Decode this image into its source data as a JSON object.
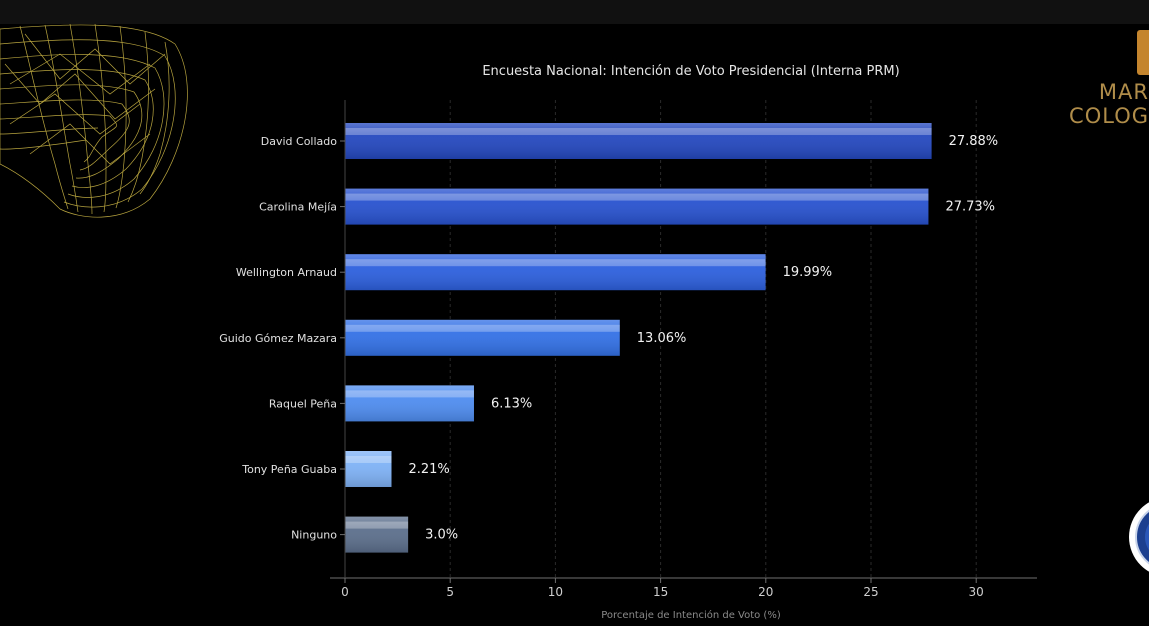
{
  "chart_data": {
    "type": "bar",
    "orientation": "horizontal",
    "title": "Encuesta Nacional: Intención de Voto Presidencial (Interna PRM)",
    "xlabel": "Porcentaje de Intención de Voto (%)",
    "ylabel": "",
    "xlim": [
      0,
      33
    ],
    "xticks": [
      0,
      5,
      10,
      15,
      20,
      25,
      30
    ],
    "grid": true,
    "legend": "none",
    "categories": [
      "David Collado",
      "Carolina Mejía",
      "Wellington Arnaud",
      "Guido Gómez Mazara",
      "Raquel Peña",
      "Tony Peña Guaba",
      "Ninguno"
    ],
    "values": [
      27.88,
      27.73,
      19.99,
      13.06,
      6.13,
      2.21,
      3.0
    ],
    "data_labels": [
      "27.88%",
      "27.73%",
      "19.99%",
      "13.06%",
      "6.13%",
      "2.21%",
      "3.0%"
    ],
    "bar_colors": [
      "#2448bf",
      "#2852cf",
      "#2d60de",
      "#3371e6",
      "#4f8df0",
      "#7fb2f6",
      "#5c6f8c"
    ]
  },
  "watermark": {
    "line1": "MAR",
    "line2": "COLOG"
  },
  "colors": {
    "background": "#000000",
    "mesh": "#d9c24a",
    "brand": "#b08d4a"
  }
}
